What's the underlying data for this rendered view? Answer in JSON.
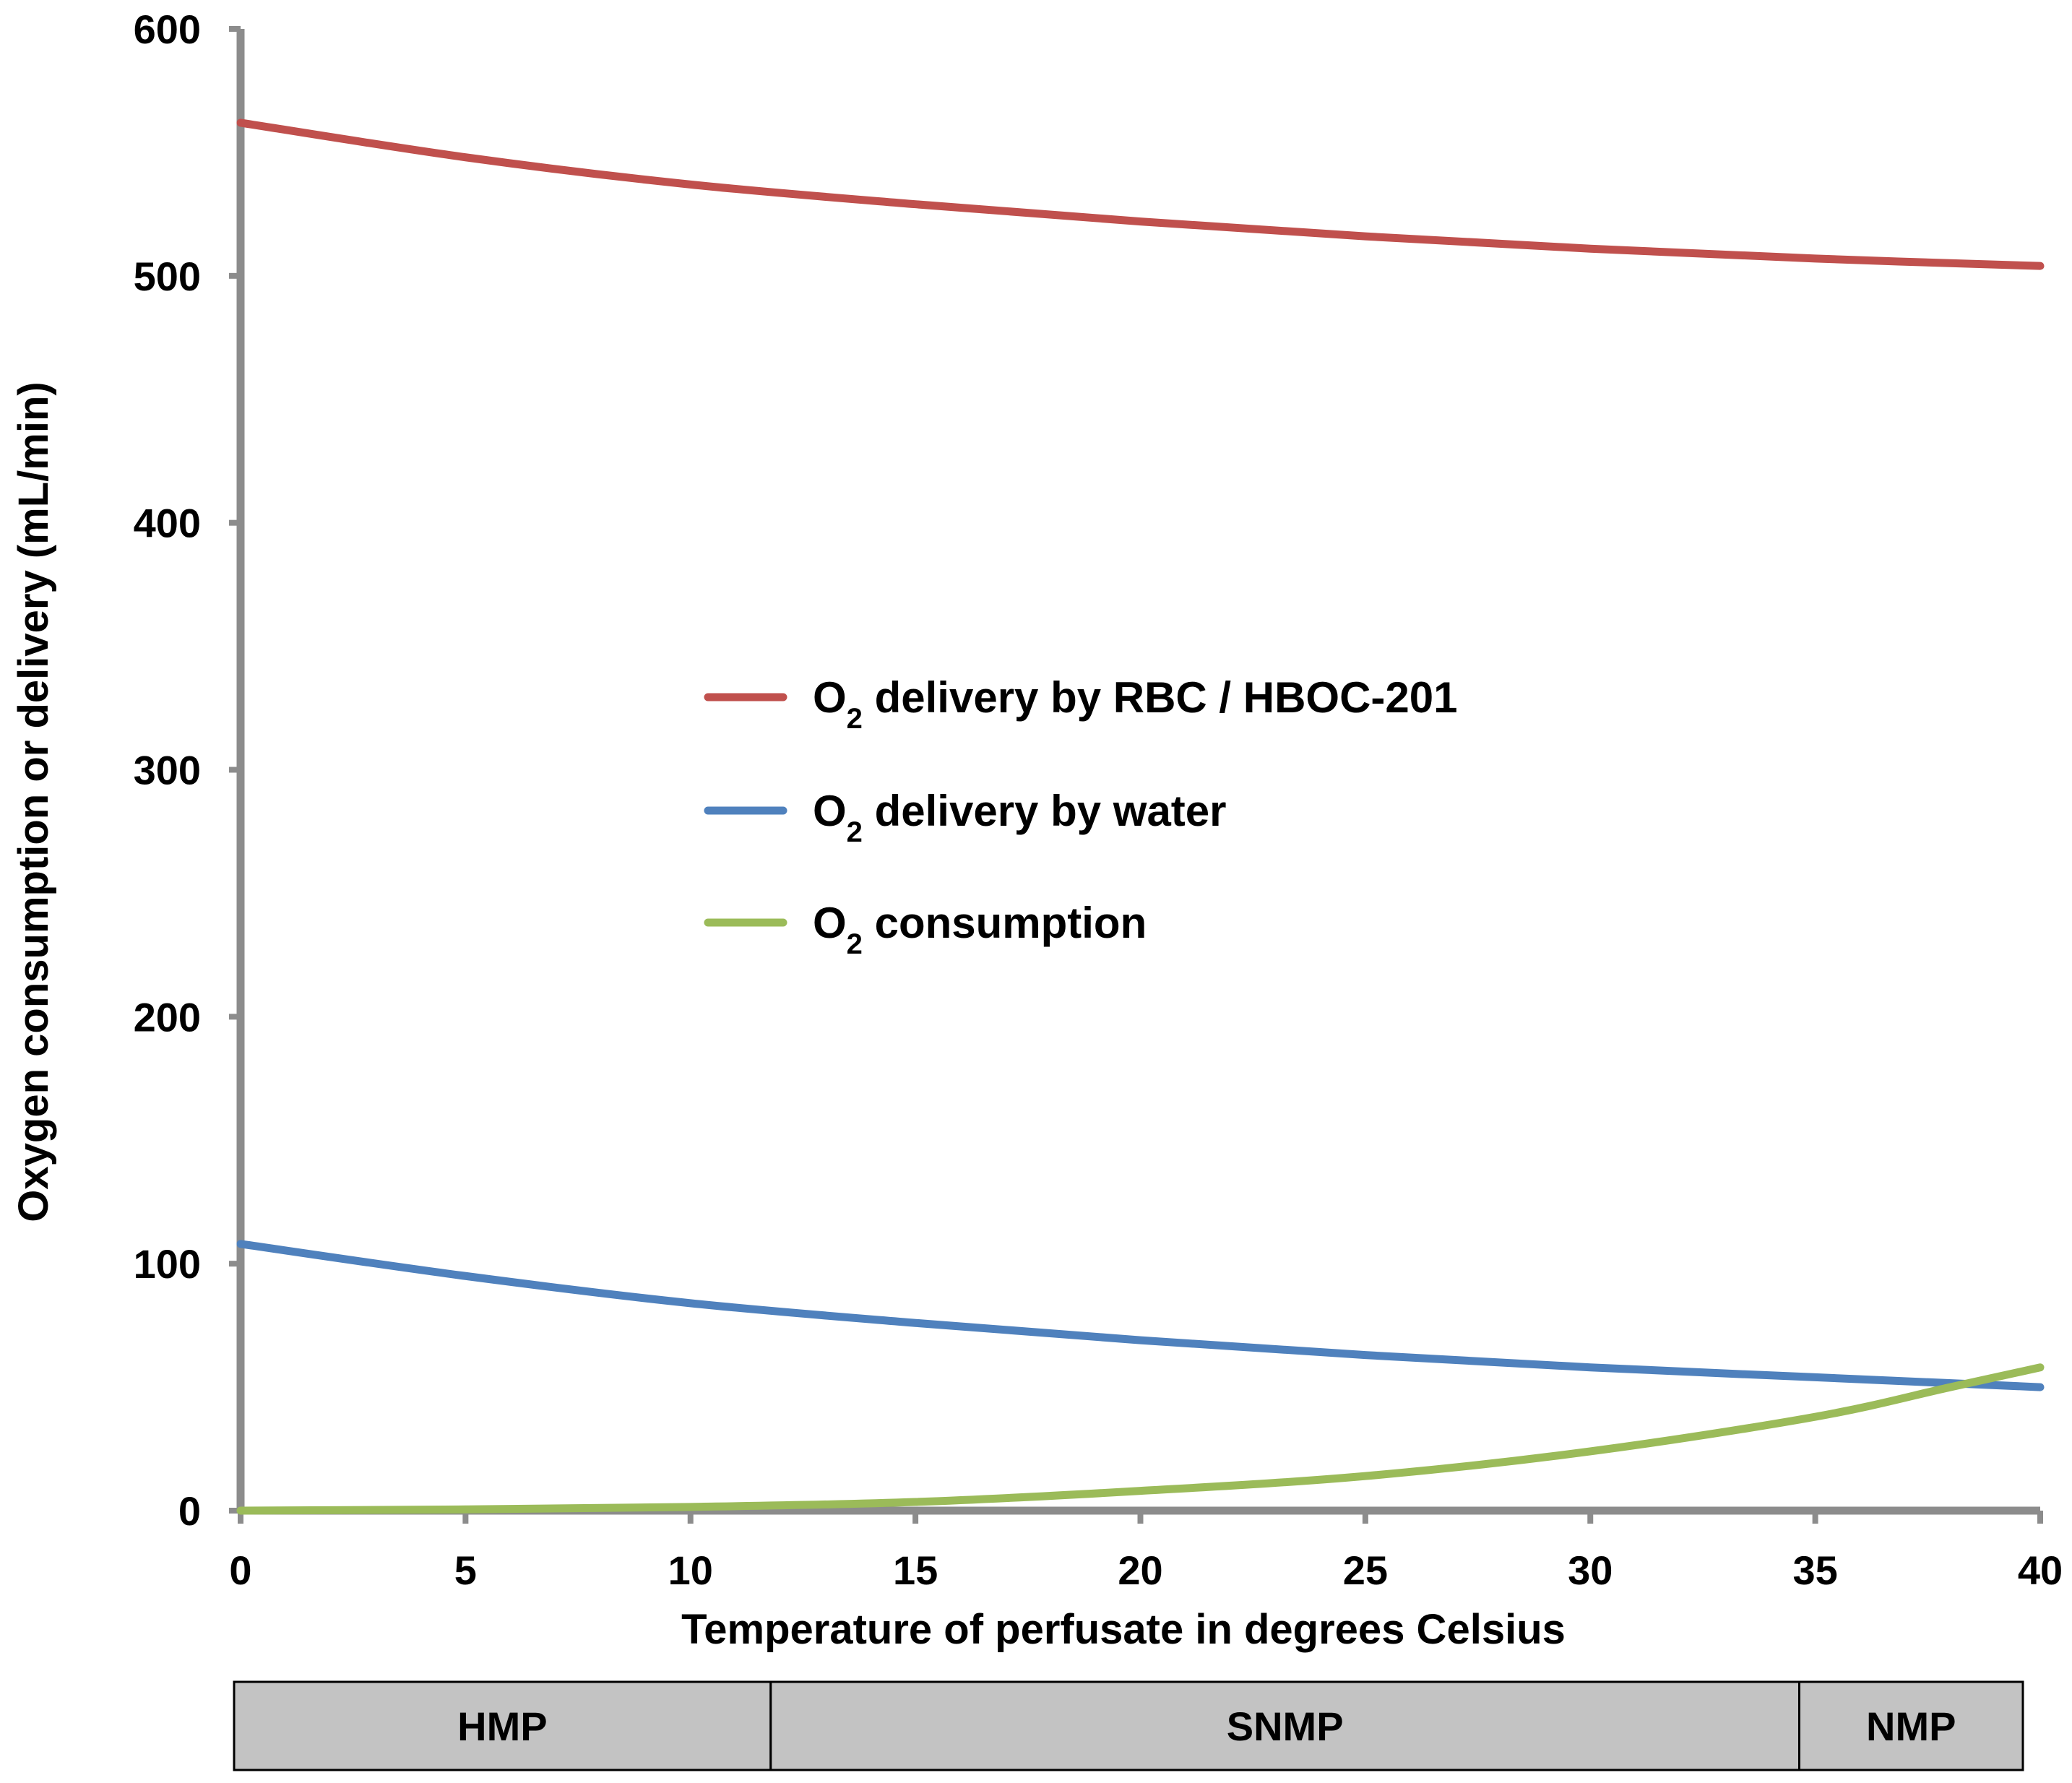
{
  "chart_data": {
    "type": "line",
    "title": "",
    "xlabel": "Temperature of perfusate in degrees Celsius",
    "ylabel": "Oxygen consumption or delivery (mL/min)",
    "xlim": [
      0,
      40
    ],
    "ylim": [
      0,
      600
    ],
    "x_ticks": [
      "0",
      "5",
      "10",
      "15",
      "20",
      "25",
      "30",
      "35",
      "40"
    ],
    "y_ticks": [
      "0",
      "100",
      "200",
      "300",
      "400",
      "500",
      "600"
    ],
    "legend_position": "center",
    "series": [
      {
        "key": "rbc",
        "name_prefix": "O",
        "name_sub": "2",
        "name_suffix": " delivery by RBC / HBOC-201",
        "color": "#c0504d",
        "x": [
          0,
          5,
          10,
          15,
          20,
          25,
          30,
          35,
          40
        ],
        "values": [
          562,
          548,
          537,
          529,
          522,
          516,
          511,
          507,
          504
        ]
      },
      {
        "key": "water",
        "name_prefix": "O",
        "name_sub": "2",
        "name_suffix": " delivery by water",
        "color": "#4f81bd",
        "x": [
          0,
          5,
          10,
          15,
          20,
          25,
          30,
          35,
          40
        ],
        "values": [
          108,
          95,
          84,
          76,
          69,
          63,
          58,
          54,
          50
        ]
      },
      {
        "key": "consumption",
        "name_prefix": "O",
        "name_sub": "2",
        "name_suffix": " consumption",
        "color": "#9bbb59",
        "x": [
          0,
          5,
          10,
          15,
          20,
          25,
          30,
          35,
          38,
          40
        ],
        "values": [
          0,
          0.5,
          1.5,
          3.5,
          8,
          14,
          24,
          38,
          50,
          58
        ]
      }
    ],
    "bands": [
      {
        "label": "HMP",
        "from": 0,
        "to": 12
      },
      {
        "label": "SNMP",
        "from": 12,
        "to": 35
      },
      {
        "label": "NMP",
        "from": 35,
        "to": 40
      }
    ],
    "colors": {
      "axis": "#8c8c8c",
      "band_fill": "#c3c3c3",
      "band_stroke": "#000000"
    }
  }
}
